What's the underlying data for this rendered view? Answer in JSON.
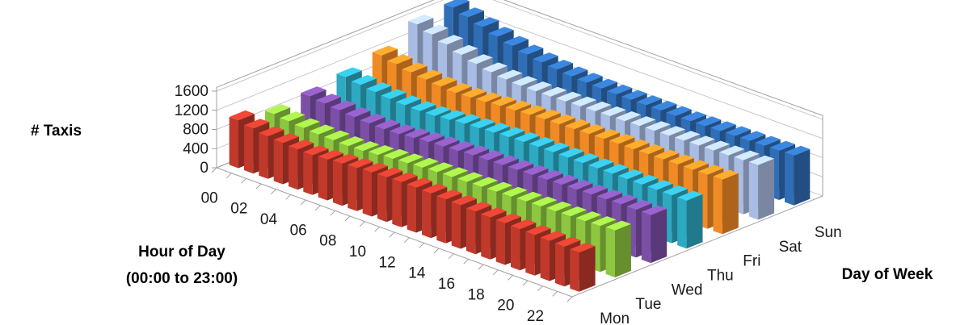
{
  "chart_data": {
    "type": "bar3d",
    "title": "",
    "ylabel": "# Taxis",
    "xlabel_line1": "Hour of Day",
    "xlabel_line2": "(00:00 to 23:00)",
    "zlabel": "Day of Week",
    "ylim": [
      0,
      1600
    ],
    "yticks": [
      "0",
      "400",
      "800",
      "1200",
      "1600"
    ],
    "hours": [
      "00",
      "01",
      "02",
      "03",
      "04",
      "05",
      "06",
      "07",
      "08",
      "09",
      "10",
      "11",
      "12",
      "13",
      "14",
      "15",
      "16",
      "17",
      "18",
      "19",
      "20",
      "21",
      "22",
      "23"
    ],
    "hour_tick_labels": [
      "00",
      "02",
      "04",
      "06",
      "08",
      "10",
      "12",
      "14",
      "16",
      "18",
      "20",
      "22"
    ],
    "series": [
      {
        "name": "Mon",
        "color": "#c0392b",
        "values": [
          1000,
          940,
          890,
          860,
          840,
          830,
          850,
          880,
          900,
          920,
          930,
          940,
          940,
          930,
          920,
          910,
          890,
          880,
          870,
          860,
          850,
          840,
          830,
          820
        ]
      },
      {
        "name": "Tue",
        "color": "#8dc63f",
        "values": [
          830,
          790,
          760,
          740,
          730,
          720,
          730,
          760,
          790,
          810,
          830,
          850,
          860,
          870,
          880,
          890,
          900,
          910,
          920,
          930,
          940,
          950,
          960,
          980
        ]
      },
      {
        "name": "Wed",
        "color": "#7b4fa6",
        "values": [
          900,
          860,
          830,
          800,
          780,
          770,
          780,
          810,
          840,
          860,
          880,
          900,
          910,
          920,
          930,
          940,
          950,
          960,
          970,
          980,
          990,
          1000,
          1000,
          1000
        ]
      },
      {
        "name": "Thu",
        "color": "#2ea9c2",
        "values": [
          1000,
          950,
          910,
          880,
          860,
          850,
          860,
          890,
          920,
          940,
          960,
          980,
          990,
          1000,
          1000,
          1000,
          1000,
          1000,
          1000,
          1000,
          1000,
          1000,
          1000,
          1000
        ]
      },
      {
        "name": "Fri",
        "color": "#f08a24",
        "values": [
          1150,
          1080,
          1020,
          980,
          950,
          930,
          940,
          960,
          990,
          1010,
          1030,
          1050,
          1060,
          1070,
          1080,
          1090,
          1100,
          1100,
          1110,
          1110,
          1120,
          1120,
          1130,
          1140
        ]
      },
      {
        "name": "Sat",
        "color": "#a9bce3",
        "values": [
          1500,
          1400,
          1300,
          1200,
          1120,
          1060,
          1020,
          1000,
          1000,
          1000,
          1010,
          1020,
          1030,
          1040,
          1050,
          1060,
          1070,
          1080,
          1090,
          1100,
          1110,
          1120,
          1130,
          1140
        ]
      },
      {
        "name": "Sun",
        "color": "#2f6db5",
        "values": [
          1550,
          1460,
          1370,
          1280,
          1200,
          1130,
          1080,
          1040,
          1010,
          990,
          980,
          970,
          970,
          970,
          970,
          970,
          970,
          980,
          990,
          1000,
          1010,
          1020,
          1030,
          1040
        ]
      }
    ]
  }
}
